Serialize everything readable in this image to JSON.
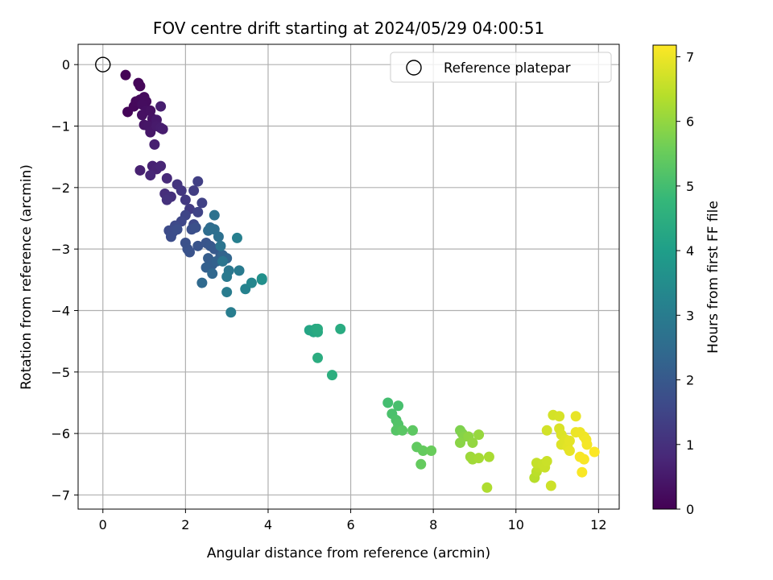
{
  "chart_data": {
    "type": "scatter",
    "title": "FOV centre drift starting at 2024/05/29 04:00:51",
    "xlabel": "Angular distance from reference (arcmin)",
    "ylabel": "Rotation from reference (arcmin)",
    "xlim": [
      -0.6,
      12.5
    ],
    "ylim": [
      -7.23,
      0.33
    ],
    "xticks": [
      "0",
      "2",
      "4",
      "6",
      "8",
      "10",
      "12"
    ],
    "yticks": [
      "0",
      "−1",
      "−2",
      "−3",
      "−4",
      "−5",
      "−6",
      "−7"
    ],
    "grid": true,
    "legend": {
      "label": "Reference platepar",
      "position": "top-right"
    },
    "reference_point": {
      "x": 0,
      "y": 0
    },
    "colorbar": {
      "label": "Hours from first FF file",
      "colormap": "viridis",
      "range": [
        0,
        7.18
      ],
      "ticks": [
        "0",
        "1",
        "2",
        "3",
        "4",
        "5",
        "6",
        "7"
      ]
    },
    "series": [
      {
        "points": [
          [
            0.55,
            -0.17,
            0.05
          ],
          [
            0.86,
            -0.3,
            0.1
          ],
          [
            0.9,
            -0.35,
            0.12
          ],
          [
            0.6,
            -0.77,
            0.08
          ],
          [
            0.75,
            -0.68,
            0.13
          ],
          [
            0.8,
            -0.6,
            0.15
          ],
          [
            0.9,
            -0.57,
            0.17
          ],
          [
            1.0,
            -0.53,
            0.2
          ],
          [
            1.05,
            -0.6,
            0.22
          ],
          [
            0.95,
            -0.65,
            0.25
          ],
          [
            1.05,
            -0.75,
            0.28
          ],
          [
            0.95,
            -0.82,
            0.3
          ],
          [
            1.15,
            -0.75,
            0.32
          ],
          [
            1.2,
            -0.88,
            0.35
          ],
          [
            1.0,
            -0.98,
            0.38
          ],
          [
            1.1,
            -1.0,
            0.42
          ],
          [
            1.15,
            -1.1,
            0.45
          ],
          [
            1.3,
            -0.9,
            0.48
          ],
          [
            1.3,
            -1.0,
            0.52
          ],
          [
            1.4,
            -1.03,
            0.55
          ],
          [
            1.45,
            -1.05,
            0.58
          ],
          [
            1.4,
            -0.68,
            0.6
          ],
          [
            1.25,
            -1.3,
            0.62
          ],
          [
            0.9,
            -1.72,
            0.65
          ],
          [
            1.2,
            -1.65,
            0.68
          ],
          [
            1.3,
            -1.7,
            0.72
          ],
          [
            1.4,
            -1.65,
            0.75
          ],
          [
            1.15,
            -1.8,
            0.78
          ],
          [
            1.55,
            -1.85,
            0.85
          ],
          [
            1.5,
            -2.1,
            0.95
          ],
          [
            1.65,
            -2.15,
            1.0
          ],
          [
            1.55,
            -2.2,
            1.05
          ],
          [
            1.8,
            -1.95,
            1.1
          ],
          [
            1.9,
            -2.05,
            1.15
          ],
          [
            2.0,
            -2.2,
            1.2
          ],
          [
            2.1,
            -2.35,
            1.25
          ],
          [
            2.2,
            -2.05,
            1.3
          ],
          [
            2.3,
            -1.9,
            1.35
          ],
          [
            2.4,
            -2.25,
            1.4
          ],
          [
            2.3,
            -2.4,
            1.45
          ],
          [
            2.0,
            -2.45,
            1.5
          ],
          [
            1.9,
            -2.55,
            1.55
          ],
          [
            2.2,
            -2.6,
            1.6
          ],
          [
            1.75,
            -2.62,
            1.62
          ],
          [
            1.6,
            -2.7,
            1.65
          ],
          [
            1.7,
            -2.72,
            1.68
          ],
          [
            1.65,
            -2.8,
            1.7
          ],
          [
            1.8,
            -2.68,
            1.72
          ],
          [
            2.15,
            -2.68,
            1.75
          ],
          [
            2.25,
            -2.65,
            1.78
          ],
          [
            2.0,
            -2.9,
            1.8
          ],
          [
            2.05,
            -3.0,
            1.82
          ],
          [
            2.1,
            -3.05,
            1.85
          ],
          [
            2.3,
            -2.95,
            1.88
          ],
          [
            2.5,
            -2.9,
            1.9
          ],
          [
            2.6,
            -2.95,
            1.95
          ],
          [
            2.7,
            -3.0,
            2.0
          ],
          [
            2.85,
            -3.1,
            2.05
          ],
          [
            2.55,
            -3.15,
            2.1
          ],
          [
            2.65,
            -3.25,
            2.15
          ],
          [
            2.5,
            -3.3,
            2.2
          ],
          [
            2.75,
            -3.2,
            2.25
          ],
          [
            2.9,
            -3.1,
            2.3
          ],
          [
            3.0,
            -3.15,
            2.35
          ],
          [
            2.65,
            -3.4,
            2.4
          ],
          [
            2.4,
            -3.55,
            2.45
          ],
          [
            2.6,
            -2.65,
            2.5
          ],
          [
            2.55,
            -2.7,
            2.55
          ],
          [
            2.7,
            -2.68,
            2.6
          ],
          [
            2.8,
            -2.8,
            2.65
          ],
          [
            2.7,
            -2.45,
            2.7
          ],
          [
            2.85,
            -2.95,
            2.75
          ],
          [
            2.9,
            -3.2,
            2.8
          ],
          [
            3.05,
            -3.35,
            2.85
          ],
          [
            3.0,
            -3.45,
            2.9
          ],
          [
            3.3,
            -3.35,
            2.95
          ],
          [
            3.0,
            -3.7,
            3.0
          ],
          [
            3.1,
            -4.03,
            3.05
          ],
          [
            3.25,
            -2.82,
            3.1
          ],
          [
            3.45,
            -3.65,
            3.2
          ],
          [
            3.6,
            -3.55,
            3.3
          ],
          [
            3.85,
            -3.5,
            3.5
          ],
          [
            3.85,
            -3.48,
            3.6
          ],
          [
            5.0,
            -4.32,
            4.2
          ],
          [
            5.1,
            -4.35,
            4.25
          ],
          [
            5.15,
            -4.3,
            4.3
          ],
          [
            5.2,
            -4.35,
            4.35
          ],
          [
            5.2,
            -4.3,
            4.38
          ],
          [
            5.75,
            -4.3,
            4.4
          ],
          [
            5.2,
            -4.77,
            4.45
          ],
          [
            5.55,
            -5.05,
            4.5
          ],
          [
            6.9,
            -5.5,
            5.0
          ],
          [
            7.15,
            -5.55,
            5.05
          ],
          [
            7.0,
            -5.68,
            5.1
          ],
          [
            7.1,
            -5.78,
            5.15
          ],
          [
            7.15,
            -5.85,
            5.2
          ],
          [
            7.1,
            -5.95,
            5.25
          ],
          [
            7.25,
            -5.95,
            5.3
          ],
          [
            7.5,
            -5.95,
            5.35
          ],
          [
            7.6,
            -6.22,
            5.4
          ],
          [
            7.75,
            -6.28,
            5.45
          ],
          [
            7.95,
            -6.28,
            5.5
          ],
          [
            7.7,
            -6.5,
            5.45
          ],
          [
            8.65,
            -5.95,
            5.75
          ],
          [
            8.7,
            -6.0,
            5.8
          ],
          [
            8.75,
            -6.05,
            5.85
          ],
          [
            8.65,
            -6.15,
            5.9
          ],
          [
            8.85,
            -6.05,
            5.95
          ],
          [
            8.95,
            -6.15,
            6.0
          ],
          [
            9.1,
            -6.02,
            6.05
          ],
          [
            8.9,
            -6.38,
            6.1
          ],
          [
            8.95,
            -6.42,
            6.15
          ],
          [
            9.1,
            -6.4,
            6.2
          ],
          [
            9.35,
            -6.38,
            6.25
          ],
          [
            9.3,
            -6.88,
            6.3
          ],
          [
            10.45,
            -6.72,
            6.4
          ],
          [
            10.5,
            -6.62,
            6.45
          ],
          [
            10.55,
            -6.55,
            6.5
          ],
          [
            10.5,
            -6.48,
            6.55
          ],
          [
            10.65,
            -6.5,
            6.58
          ],
          [
            10.7,
            -6.55,
            6.6
          ],
          [
            10.75,
            -6.45,
            6.62
          ],
          [
            10.85,
            -6.85,
            6.65
          ],
          [
            10.75,
            -5.95,
            6.7
          ],
          [
            10.9,
            -5.7,
            6.72
          ],
          [
            11.05,
            -5.72,
            6.75
          ],
          [
            11.05,
            -5.92,
            6.78
          ],
          [
            11.1,
            -6.02,
            6.8
          ],
          [
            11.1,
            -6.18,
            6.82
          ],
          [
            11.2,
            -6.1,
            6.85
          ],
          [
            11.25,
            -6.22,
            6.88
          ],
          [
            11.3,
            -6.12,
            6.9
          ],
          [
            11.3,
            -6.28,
            6.92
          ],
          [
            11.45,
            -5.72,
            6.95
          ],
          [
            11.45,
            -5.98,
            6.98
          ],
          [
            11.55,
            -5.98,
            7.0
          ],
          [
            11.65,
            -6.05,
            7.02
          ],
          [
            11.7,
            -6.1,
            7.05
          ],
          [
            11.72,
            -6.18,
            7.08
          ],
          [
            11.55,
            -6.38,
            7.1
          ],
          [
            11.65,
            -6.42,
            7.12
          ],
          [
            11.6,
            -6.63,
            7.14
          ],
          [
            11.9,
            -6.3,
            7.16
          ]
        ]
      }
    ]
  }
}
